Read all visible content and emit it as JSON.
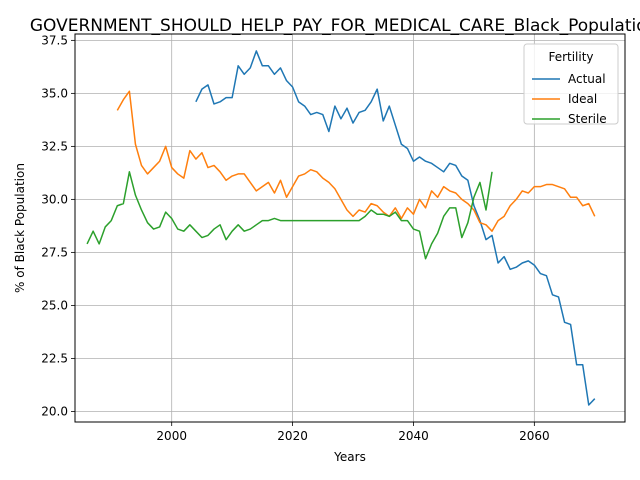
{
  "chart_data": {
    "type": "line",
    "title": "GOVERNMENT_SHOULD_HELP_PAY_FOR_MEDICAL_CARE_Black_Population_sc",
    "xlabel": "Years",
    "ylabel": "% of Black Population",
    "xlim": [
      1984,
      2075
    ],
    "ylim": [
      19.5,
      37.8
    ],
    "xticks": [
      2000,
      2020,
      2040,
      2060
    ],
    "yticks": [
      20.0,
      22.5,
      25.0,
      27.5,
      30.0,
      32.5,
      35.0,
      37.5
    ],
    "xtick_labels": [
      "2000",
      "2020",
      "2040",
      "2060"
    ],
    "ytick_labels": [
      "20.0",
      "22.5",
      "25.0",
      "27.5",
      "30.0",
      "32.5",
      "35.0",
      "37.5"
    ],
    "grid": true,
    "legend": {
      "title": "Fertility",
      "placement": "top-right"
    },
    "series": [
      {
        "name": "Actual",
        "color": "#1f77b4",
        "x": [
          2004,
          2005,
          2006,
          2007,
          2008,
          2009,
          2010,
          2011,
          2012,
          2013,
          2014,
          2015,
          2016,
          2017,
          2018,
          2019,
          2020,
          2021,
          2022,
          2023,
          2024,
          2025,
          2026,
          2027,
          2028,
          2029,
          2030,
          2031,
          2032,
          2033,
          2034,
          2035,
          2036,
          2037,
          2038,
          2039,
          2040,
          2041,
          2042,
          2043,
          2044,
          2045,
          2046,
          2047,
          2048,
          2049,
          2050,
          2051,
          2052,
          2053,
          2054,
          2055,
          2056,
          2057,
          2058,
          2059,
          2060,
          2061,
          2062,
          2063,
          2064,
          2065,
          2066,
          2067,
          2068,
          2069,
          2070
        ],
        "y": [
          34.6,
          35.2,
          35.4,
          34.5,
          34.6,
          34.8,
          34.8,
          36.3,
          35.9,
          36.2,
          37.0,
          36.3,
          36.3,
          35.9,
          36.2,
          35.6,
          35.3,
          34.6,
          34.4,
          34.0,
          34.1,
          34.0,
          33.2,
          34.4,
          33.8,
          34.3,
          33.6,
          34.1,
          34.2,
          34.6,
          35.2,
          33.7,
          34.4,
          33.5,
          32.6,
          32.4,
          31.8,
          32.0,
          31.8,
          31.7,
          31.5,
          31.3,
          31.7,
          31.6,
          31.1,
          30.9,
          29.7,
          29.0,
          28.1,
          28.3,
          27.0,
          27.3,
          26.7,
          26.8,
          27.0,
          27.1,
          26.9,
          26.5,
          26.4,
          25.5,
          25.4,
          24.2,
          24.1,
          22.2,
          22.2,
          20.3,
          20.6
        ]
      },
      {
        "name": "Ideal",
        "color": "#ff7f0e",
        "x": [
          1991,
          1992,
          1993,
          1994,
          1995,
          1996,
          1997,
          1998,
          1999,
          2000,
          2001,
          2002,
          2003,
          2004,
          2005,
          2006,
          2007,
          2008,
          2009,
          2010,
          2011,
          2012,
          2013,
          2014,
          2015,
          2016,
          2017,
          2018,
          2019,
          2020,
          2021,
          2022,
          2023,
          2024,
          2025,
          2026,
          2027,
          2028,
          2029,
          2030,
          2031,
          2032,
          2033,
          2034,
          2035,
          2036,
          2037,
          2038,
          2039,
          2040,
          2041,
          2042,
          2043,
          2044,
          2045,
          2046,
          2047,
          2048,
          2049,
          2050,
          2051,
          2052,
          2053,
          2054,
          2055,
          2056,
          2057,
          2058,
          2059,
          2060,
          2061,
          2062,
          2063,
          2064,
          2065,
          2066,
          2067,
          2068,
          2069,
          2070
        ],
        "y": [
          34.2,
          34.7,
          35.1,
          32.6,
          31.6,
          31.2,
          31.5,
          31.8,
          32.5,
          31.5,
          31.2,
          31.0,
          32.3,
          31.9,
          32.2,
          31.5,
          31.6,
          31.3,
          30.9,
          31.1,
          31.2,
          31.2,
          30.8,
          30.4,
          30.6,
          30.8,
          30.3,
          30.9,
          30.1,
          30.6,
          31.1,
          31.2,
          31.4,
          31.3,
          31.0,
          30.8,
          30.5,
          30.0,
          29.5,
          29.2,
          29.5,
          29.4,
          29.8,
          29.7,
          29.4,
          29.2,
          29.6,
          29.1,
          29.6,
          29.3,
          30.0,
          29.6,
          30.4,
          30.1,
          30.6,
          30.4,
          30.3,
          30.0,
          29.8,
          29.5,
          28.9,
          28.8,
          28.5,
          29.0,
          29.2,
          29.7,
          30.0,
          30.4,
          30.3,
          30.6,
          30.6,
          30.7,
          30.7,
          30.6,
          30.5,
          30.1,
          30.1,
          29.7,
          29.8,
          29.2
        ]
      },
      {
        "name": "Sterile",
        "color": "#2ca02c",
        "x": [
          1986,
          1987,
          1988,
          1989,
          1990,
          1991,
          1992,
          1993,
          1994,
          1995,
          1996,
          1997,
          1998,
          1999,
          2000,
          2001,
          2002,
          2003,
          2004,
          2005,
          2006,
          2007,
          2008,
          2009,
          2010,
          2011,
          2012,
          2013,
          2014,
          2015,
          2016,
          2017,
          2018,
          2019,
          2020,
          2021,
          2022,
          2023,
          2024,
          2025,
          2026,
          2027,
          2028,
          2029,
          2030,
          2031,
          2032,
          2033,
          2034,
          2035,
          2036,
          2037,
          2038,
          2039,
          2040,
          2041,
          2042,
          2043,
          2044,
          2045,
          2046,
          2047,
          2048,
          2049,
          2050,
          2051,
          2052,
          2053
        ],
        "y": [
          27.9,
          28.5,
          27.9,
          28.7,
          29.0,
          29.7,
          29.8,
          31.3,
          30.2,
          29.5,
          28.9,
          28.6,
          28.7,
          29.4,
          29.1,
          28.6,
          28.5,
          28.8,
          28.5,
          28.2,
          28.3,
          28.6,
          28.8,
          28.1,
          28.5,
          28.8,
          28.5,
          28.6,
          28.8,
          29.0,
          29.0,
          29.1,
          29.0,
          29.0,
          29.0,
          29.0,
          29.0,
          29.0,
          29.0,
          29.0,
          29.0,
          29.0,
          29.0,
          29.0,
          29.0,
          29.0,
          29.2,
          29.5,
          29.3,
          29.3,
          29.2,
          29.4,
          29.0,
          29.0,
          28.6,
          28.5,
          27.2,
          27.9,
          28.4,
          29.2,
          29.6,
          29.6,
          28.2,
          28.9,
          30.1,
          30.8,
          29.5,
          31.3
        ]
      }
    ]
  }
}
